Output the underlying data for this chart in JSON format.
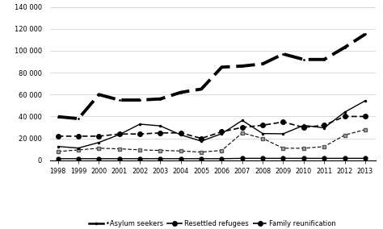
{
  "years": [
    1998,
    1999,
    2000,
    2001,
    2002,
    2003,
    2004,
    2005,
    2006,
    2007,
    2008,
    2009,
    2010,
    2011,
    2012,
    2013
  ],
  "asylum_seekers": [
    12600,
    11200,
    16300,
    23500,
    33000,
    31400,
    23200,
    17500,
    24300,
    36400,
    24400,
    24200,
    31900,
    29600,
    43900,
    54300
  ],
  "refugees": [
    8000,
    9500,
    11000,
    10500,
    9500,
    9000,
    8500,
    7500,
    9000,
    25000,
    20000,
    11000,
    11000,
    12500,
    23000,
    28000
  ],
  "resettled_refugees": [
    1500,
    1500,
    1500,
    1500,
    1500,
    1500,
    1500,
    1500,
    1500,
    1800,
    1800,
    1800,
    1800,
    1800,
    1800,
    1800
  ],
  "total_immigration": [
    39800,
    38000,
    60000,
    55000,
    55000,
    56000,
    62000,
    65000,
    85000,
    86000,
    88000,
    97000,
    92000,
    92000,
    103000,
    115000
  ],
  "family_reunification": [
    22000,
    22000,
    22000,
    24000,
    24000,
    25000,
    25000,
    20000,
    26000,
    30000,
    32000,
    35000,
    30000,
    32000,
    40000,
    40000
  ],
  "ylim": [
    0,
    140000
  ],
  "yticks": [
    0,
    20000,
    40000,
    60000,
    80000,
    100000,
    120000,
    140000
  ],
  "ytick_labels": [
    "0",
    "20 000",
    "40 000",
    "60 000",
    "80 000",
    "100 000",
    "120 000",
    "140 000"
  ],
  "line_color": "#000000",
  "background_color": "#ffffff",
  "grid_color": "#cccccc"
}
